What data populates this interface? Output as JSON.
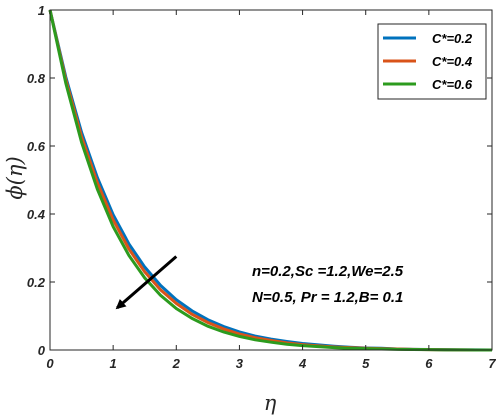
{
  "chart_data": {
    "type": "line",
    "xlabel": "η",
    "ylabel": "ϕ(η)",
    "xlim": [
      0,
      7
    ],
    "ylim": [
      0,
      1
    ],
    "xticks": [
      "0",
      "1",
      "2",
      "3",
      "4",
      "5",
      "6",
      "7"
    ],
    "yticks": [
      "0",
      "0.2",
      "0.4",
      "0.6",
      "0.8",
      "1"
    ],
    "grid": false,
    "legend_position": "top-right",
    "annotation_lines": [
      "n=0.2,Sc =1.2,We=2.5",
      "N=0.5, Pr = 1.2,B= 0.1"
    ],
    "arrow": {
      "from": [
        2.0,
        0.275
      ],
      "to": [
        1.0,
        0.115
      ]
    },
    "series": [
      {
        "name": "C*=0.2",
        "color": "#0072BD",
        "x": [
          0,
          0.25,
          0.5,
          0.75,
          1.0,
          1.25,
          1.5,
          1.75,
          2.0,
          2.25,
          2.5,
          2.75,
          3.0,
          3.25,
          3.5,
          3.75,
          4.0,
          4.25,
          4.5,
          4.75,
          5.0,
          5.25,
          5.5,
          5.75,
          6.0,
          6.25,
          6.5,
          6.75,
          7.0
        ],
        "y": [
          1.0,
          0.803,
          0.64,
          0.507,
          0.398,
          0.312,
          0.244,
          0.19,
          0.148,
          0.115,
          0.089,
          0.069,
          0.053,
          0.041,
          0.032,
          0.025,
          0.019,
          0.015,
          0.011,
          0.008,
          0.006,
          0.005,
          0.003,
          0.002,
          0.0015,
          0.001,
          0.0005,
          0.0002,
          0.0
        ]
      },
      {
        "name": "C*=0.4",
        "color": "#D95319",
        "x": [
          0,
          0.25,
          0.5,
          0.75,
          1.0,
          1.25,
          1.5,
          1.75,
          2.0,
          2.25,
          2.5,
          2.75,
          3.0,
          3.25,
          3.5,
          3.75,
          4.0,
          4.25,
          4.5,
          4.75,
          5.0,
          5.25,
          5.5,
          5.75,
          6.0,
          6.25,
          6.5,
          6.75,
          7.0
        ],
        "y": [
          1.0,
          0.795,
          0.627,
          0.492,
          0.383,
          0.297,
          0.23,
          0.177,
          0.137,
          0.105,
          0.081,
          0.062,
          0.047,
          0.036,
          0.028,
          0.021,
          0.016,
          0.012,
          0.009,
          0.007,
          0.005,
          0.004,
          0.003,
          0.002,
          0.001,
          0.0007,
          0.0004,
          0.0001,
          0.0
        ]
      },
      {
        "name": "C*=0.6",
        "color": "#2C9B1E",
        "x": [
          0,
          0.25,
          0.5,
          0.75,
          1.0,
          1.25,
          1.5,
          1.75,
          2.0,
          2.25,
          2.5,
          2.75,
          3.0,
          3.25,
          3.5,
          3.75,
          4.0,
          4.25,
          4.5,
          4.75,
          5.0,
          5.25,
          5.5,
          5.75,
          6.0,
          6.25,
          6.5,
          6.75,
          7.0
        ],
        "y": [
          1.0,
          0.785,
          0.611,
          0.473,
          0.363,
          0.278,
          0.212,
          0.161,
          0.122,
          0.093,
          0.07,
          0.053,
          0.04,
          0.03,
          0.023,
          0.017,
          0.013,
          0.01,
          0.007,
          0.005,
          0.004,
          0.003,
          0.002,
          0.0015,
          0.001,
          0.0005,
          0.0003,
          0.0001,
          0.0
        ]
      }
    ]
  }
}
